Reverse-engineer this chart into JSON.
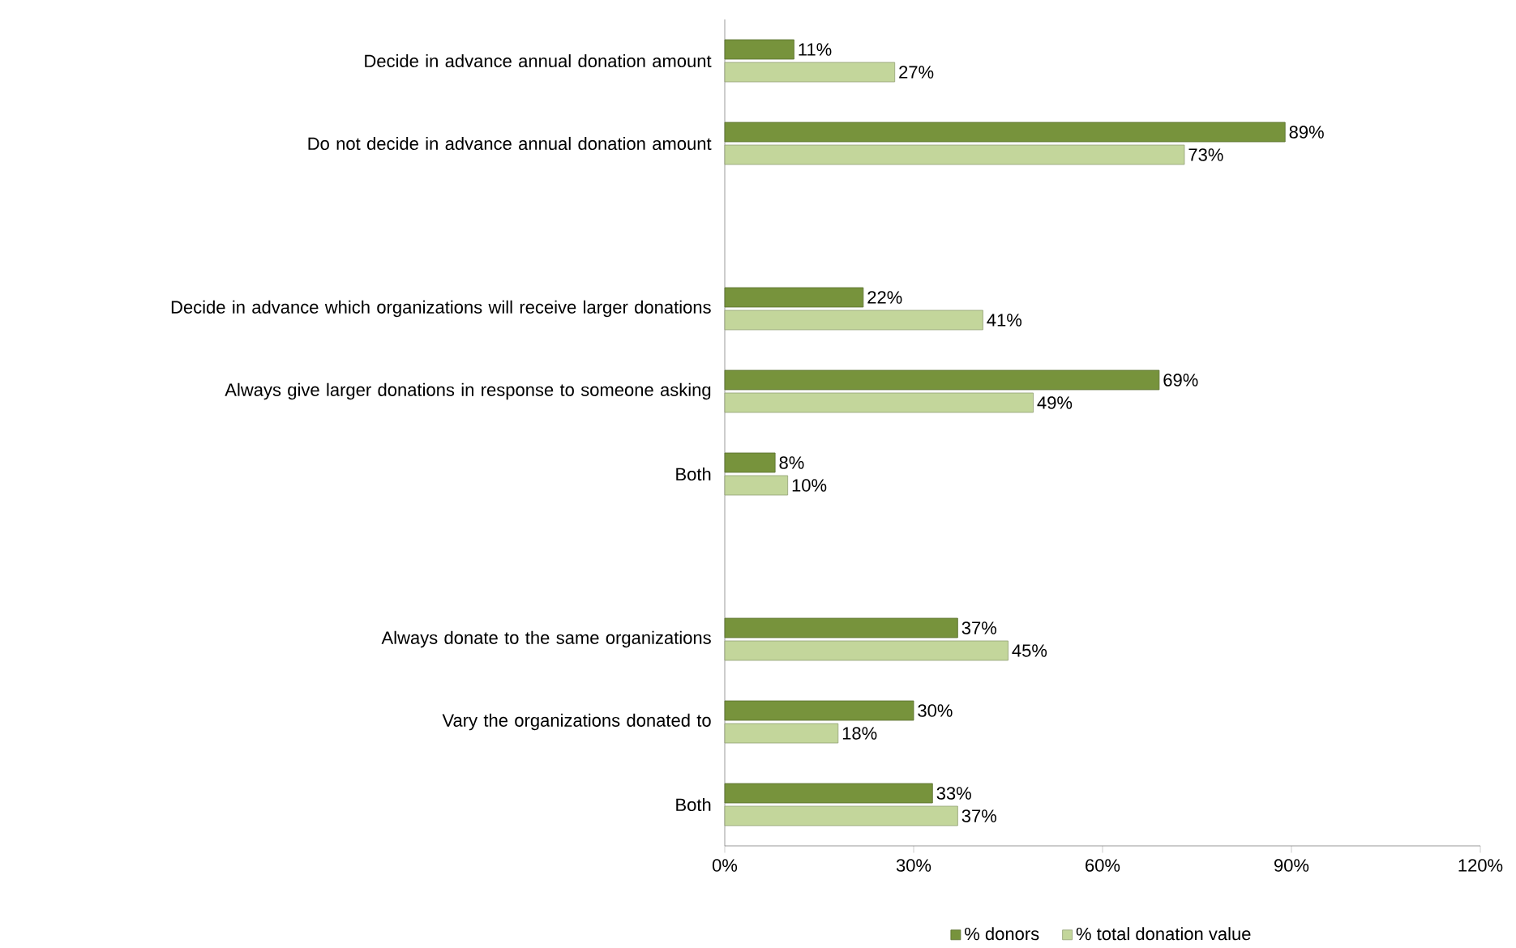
{
  "chart_data": {
    "type": "bar",
    "orientation": "horizontal",
    "categories": [
      "Decide in advance annual donation amount",
      "Do not decide in advance annual donation amount",
      null,
      "Decide in advance which organizations will receive larger donations",
      "Always give larger donations in response to someone asking",
      "Both",
      null,
      "Always donate to the same organizations",
      "Vary the organizations donated to",
      "Both"
    ],
    "series": [
      {
        "name": "% donors",
        "color": "#77933c",
        "values": [
          11,
          89,
          null,
          22,
          69,
          8,
          null,
          37,
          30,
          33
        ],
        "value_labels": [
          "11%",
          "89%",
          null,
          "22%",
          "69%",
          "8%",
          null,
          "37%",
          "30%",
          "33%"
        ]
      },
      {
        "name": "% total donation value",
        "color": "#c3d69b",
        "values": [
          27,
          73,
          null,
          41,
          49,
          10,
          null,
          45,
          18,
          37
        ],
        "value_labels": [
          "27%",
          "73%",
          null,
          "41%",
          "49%",
          "10%",
          null,
          "45%",
          "18%",
          "37%"
        ]
      }
    ],
    "xlim": [
      0,
      120
    ],
    "xticks": [
      {
        "value": 0,
        "label": "0%"
      },
      {
        "value": 30,
        "label": "30%"
      },
      {
        "value": 60,
        "label": "60%"
      },
      {
        "value": 90,
        "label": "90%"
      },
      {
        "value": 120,
        "label": "120%"
      }
    ],
    "legend": "bottom"
  }
}
